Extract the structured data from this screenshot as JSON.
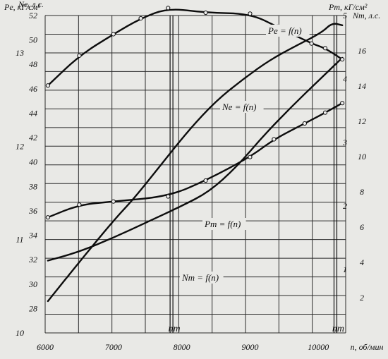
{
  "chart_data": {
    "type": "line",
    "x_axis": {
      "label": "n, об/мин",
      "range": [
        6000,
        10400
      ],
      "ticks": [
        6000,
        7000,
        8000,
        9000,
        10000
      ],
      "markers": [
        {
          "label": "n_m",
          "value": 7850
        },
        {
          "label": "n_m",
          "value": 10250
        }
      ]
    },
    "axes": {
      "pe": {
        "label": "Pe, кГ/см²",
        "range": [
          10,
          13.4
        ],
        "ticks": [
          10,
          11,
          12,
          13
        ]
      },
      "ne": {
        "label": "Ne, л.с.",
        "range": [
          26,
          52
        ],
        "ticks": [
          28,
          30,
          32,
          34,
          36,
          38,
          40,
          42,
          44,
          46,
          48,
          50,
          52
        ]
      },
      "pm": {
        "label": "Pm, кГ/см²",
        "range": [
          0,
          5.0
        ],
        "ticks": [
          1,
          2,
          3,
          4,
          5
        ]
      },
      "nm": {
        "label": "Nm, л.с.",
        "range": [
          0,
          18
        ],
        "ticks": [
          2,
          4,
          6,
          8,
          10,
          12,
          14,
          16
        ]
      }
    },
    "series": [
      {
        "name": "Pe = f(n)",
        "axis": "pe",
        "markers": true,
        "points": [
          [
            6040,
            12.65
          ],
          [
            6500,
            12.97
          ],
          [
            7000,
            13.2
          ],
          [
            7400,
            13.37
          ],
          [
            7800,
            13.48
          ],
          [
            8350,
            13.43
          ],
          [
            9000,
            13.42
          ],
          [
            9400,
            13.28
          ],
          [
            9900,
            13.1
          ],
          [
            10100,
            13.05
          ],
          [
            10350,
            12.93
          ]
        ]
      },
      {
        "name": "Ne = f(n)",
        "axis": "ne",
        "markers": false,
        "points": [
          [
            6040,
            28.6
          ],
          [
            6500,
            31.8
          ],
          [
            7000,
            35.2
          ],
          [
            7300,
            37.0
          ],
          [
            7700,
            39.8
          ],
          [
            8100,
            42.6
          ],
          [
            8500,
            45.0
          ],
          [
            8900,
            46.8
          ],
          [
            9300,
            48.4
          ],
          [
            9700,
            49.6
          ],
          [
            10050,
            50.6
          ],
          [
            10200,
            51.4
          ],
          [
            10350,
            51.2
          ]
        ]
      },
      {
        "name": "Pm = f(n)",
        "axis": "pm",
        "markers": true,
        "points": [
          [
            6040,
            1.82
          ],
          [
            6500,
            2.02
          ],
          [
            7000,
            2.07
          ],
          [
            7800,
            2.15
          ],
          [
            8350,
            2.4
          ],
          [
            9000,
            2.77
          ],
          [
            9350,
            3.05
          ],
          [
            9800,
            3.3
          ],
          [
            10100,
            3.47
          ],
          [
            10350,
            3.62
          ]
        ]
      },
      {
        "name": "Nm = f(n)",
        "axis": "nm",
        "markers": false,
        "points": [
          [
            6040,
            4.1
          ],
          [
            6500,
            4.6
          ],
          [
            7000,
            5.4
          ],
          [
            7500,
            6.3
          ],
          [
            8000,
            7.2
          ],
          [
            8400,
            8.0
          ],
          [
            8800,
            9.4
          ],
          [
            9200,
            11.2
          ],
          [
            9600,
            12.8
          ],
          [
            10000,
            14.3
          ],
          [
            10350,
            15.6
          ]
        ]
      }
    ],
    "grid": true
  }
}
